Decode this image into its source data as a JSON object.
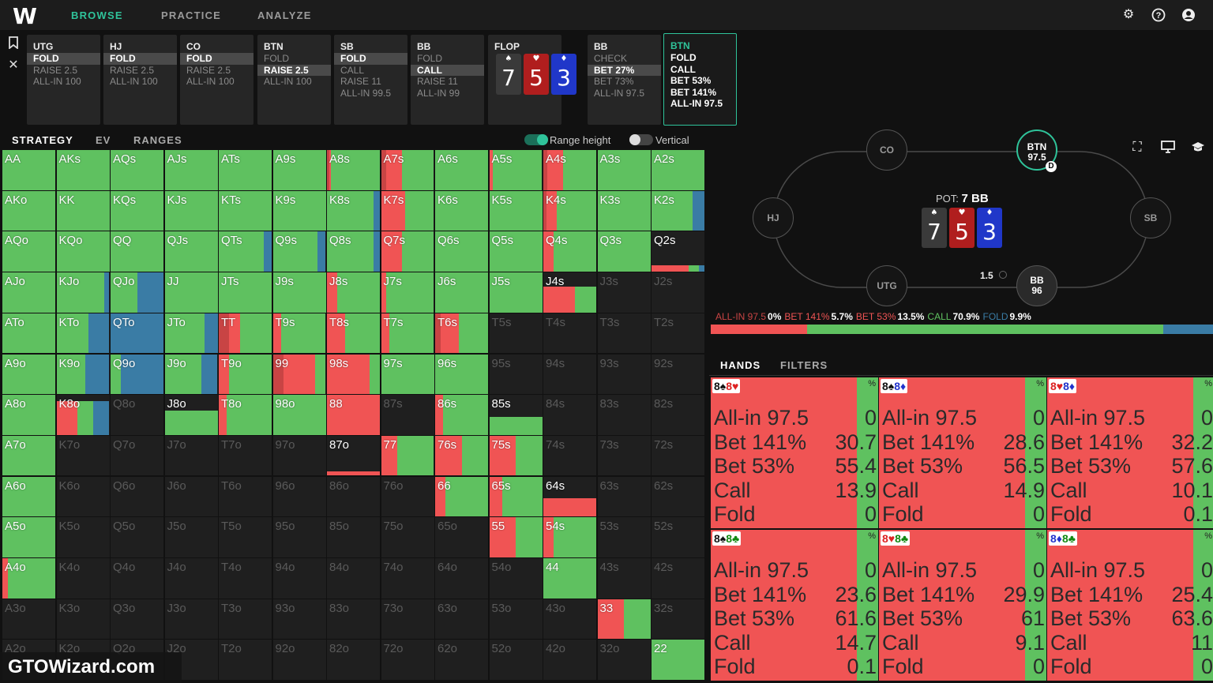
{
  "nav": {
    "logo": "W",
    "tabs": [
      "BROWSE",
      "PRACTICE",
      "ANALYZE"
    ],
    "active": "BROWSE",
    "icons": [
      "gear-icon",
      "help-icon",
      "user-icon"
    ]
  },
  "colors": {
    "green": "#5fc160",
    "red": "#f05454",
    "darkred": "#c84444",
    "blue": "#3a7ca5",
    "accent": "#2fc39a"
  },
  "actionStrip": {
    "positions": [
      {
        "name": "UTG",
        "actions": [
          "FOLD",
          "RAISE 2.5",
          "ALL-IN 100"
        ],
        "selected": 0
      },
      {
        "name": "HJ",
        "actions": [
          "FOLD",
          "RAISE 2.5",
          "ALL-IN 100"
        ],
        "selected": 0
      },
      {
        "name": "CO",
        "actions": [
          "FOLD",
          "RAISE 2.5",
          "ALL-IN 100"
        ],
        "selected": 0
      },
      {
        "name": "BTN",
        "actions": [
          "FOLD",
          "RAISE 2.5",
          "ALL-IN 100"
        ],
        "selected": 1
      },
      {
        "name": "SB",
        "actions": [
          "FOLD",
          "CALL",
          "RAISE 11",
          "ALL-IN 99.5"
        ],
        "selected": 0
      },
      {
        "name": "BB",
        "actions": [
          "FOLD",
          "CALL",
          "RAISE 11",
          "ALL-IN 99"
        ],
        "selected": 1
      }
    ],
    "flop": {
      "label": "FLOP",
      "cards": [
        {
          "rank": "7",
          "suit": "♠",
          "color": "#3a3a3a"
        },
        {
          "rank": "5",
          "suit": "♥",
          "color": "#b01e1e"
        },
        {
          "rank": "3",
          "suit": "♦",
          "color": "#2037c9"
        }
      ]
    },
    "postflop": [
      {
        "name": "BB",
        "actions": [
          "CHECK",
          "BET 27%",
          "BET 73%",
          "ALL-IN 97.5"
        ],
        "selected": 1
      },
      {
        "name": "BTN",
        "actions": [
          "FOLD",
          "CALL",
          "BET 53%",
          "BET 141%",
          "ALL-IN 97.5"
        ],
        "active": true
      }
    ]
  },
  "strategyTabs": [
    "STRATEGY",
    "EV",
    "RANGES"
  ],
  "toggles": [
    {
      "label": "Range height",
      "on": true
    },
    {
      "label": "Vertical",
      "on": false
    }
  ],
  "matrix": [
    [
      "AA",
      "AKs",
      "AQs",
      "AJs",
      "ATs",
      "A9s",
      "A8s",
      "A7s",
      "A6s",
      "A5s",
      "A4s",
      "A3s",
      "A2s"
    ],
    [
      "AKo",
      "KK",
      "KQs",
      "KJs",
      "KTs",
      "K9s",
      "K8s",
      "K7s",
      "K6s",
      "K5s",
      "K4s",
      "K3s",
      "K2s"
    ],
    [
      "AQo",
      "KQo",
      "QQ",
      "QJs",
      "QTs",
      "Q9s",
      "Q8s",
      "Q7s",
      "Q6s",
      "Q5s",
      "Q4s",
      "Q3s",
      "Q2s"
    ],
    [
      "AJo",
      "KJo",
      "QJo",
      "JJ",
      "JTs",
      "J9s",
      "J8s",
      "J7s",
      "J6s",
      "J5s",
      "J4s",
      "J3s",
      "J2s"
    ],
    [
      "ATo",
      "KTo",
      "QTo",
      "JTo",
      "TT",
      "T9s",
      "T8s",
      "T7s",
      "T6s",
      "T5s",
      "T4s",
      "T3s",
      "T2s"
    ],
    [
      "A9o",
      "K9o",
      "Q9o",
      "J9o",
      "T9o",
      "99",
      "98s",
      "97s",
      "96s",
      "95s",
      "94s",
      "93s",
      "92s"
    ],
    [
      "A8o",
      "K8o",
      "Q8o",
      "J8o",
      "T8o",
      "98o",
      "88",
      "87s",
      "86s",
      "85s",
      "84s",
      "83s",
      "82s"
    ],
    [
      "A7o",
      "K7o",
      "Q7o",
      "J7o",
      "T7o",
      "97o",
      "87o",
      "77",
      "76s",
      "75s",
      "74s",
      "73s",
      "72s"
    ],
    [
      "A6o",
      "K6o",
      "Q6o",
      "J6o",
      "T6o",
      "96o",
      "86o",
      "76o",
      "66",
      "65s",
      "64s",
      "63s",
      "62s"
    ],
    [
      "A5o",
      "K5o",
      "Q5o",
      "J5o",
      "T5o",
      "95o",
      "85o",
      "75o",
      "65o",
      "55",
      "54s",
      "53s",
      "52s"
    ],
    [
      "A4o",
      "K4o",
      "Q4o",
      "J4o",
      "T4o",
      "94o",
      "84o",
      "74o",
      "64o",
      "54o",
      "44",
      "43s",
      "42s"
    ],
    [
      "A3o",
      "K3o",
      "Q3o",
      "J3o",
      "T3o",
      "93o",
      "83o",
      "73o",
      "63o",
      "53o",
      "43o",
      "33",
      "32s"
    ],
    [
      "A2o",
      "K2o",
      "Q2o",
      "J2o",
      "T2o",
      "92o",
      "82o",
      "72o",
      "62o",
      "52o",
      "42o",
      "32o",
      "22"
    ]
  ],
  "table": {
    "pot_label": "POT:",
    "pot_value": "7 BB",
    "seats": [
      {
        "name": "CO"
      },
      {
        "name": "BTN",
        "stack": "97.5",
        "dealer": "D"
      },
      {
        "name": "HJ"
      },
      {
        "name": "SB"
      },
      {
        "name": "UTG"
      },
      {
        "name": "BB",
        "stack": "96",
        "bet": "1.5"
      }
    ],
    "icons": [
      "fullscreen-icon",
      "monitor-icon",
      "graduation-cap-icon"
    ]
  },
  "summary": [
    {
      "label": "ALL-IN 97.5",
      "pct": "0%",
      "color": "#c84444",
      "frac": 0.0
    },
    {
      "label": "BET 141%",
      "pct": "5.7%",
      "color": "#f05454",
      "frac": 0.057
    },
    {
      "label": "BET 53%",
      "pct": "13.5%",
      "color": "#f05454",
      "frac": 0.135
    },
    {
      "label": "CALL",
      "pct": "70.9%",
      "color": "#5fc160",
      "frac": 0.709
    },
    {
      "label": "FOLD",
      "pct": "9.9%",
      "color": "#3a7ca5",
      "frac": 0.099
    }
  ],
  "handsTabs": [
    "HANDS",
    "FILTERS"
  ],
  "hands": [
    {
      "c1": "8♠",
      "c2": "8♥",
      "s1": "",
      "s2": "r",
      "pct": "%",
      "vals": [
        [
          "All-in 97.5",
          "0"
        ],
        [
          "Bet 141%",
          "30.7"
        ],
        [
          "Bet 53%",
          "55.4"
        ],
        [
          "Call",
          "13.9"
        ],
        [
          "Fold",
          "0"
        ]
      ]
    },
    {
      "c1": "8♠",
      "c2": "8♦",
      "s1": "",
      "s2": "b",
      "pct": "%",
      "vals": [
        [
          "All-in 97.5",
          "0"
        ],
        [
          "Bet 141%",
          "28.6"
        ],
        [
          "Bet 53%",
          "56.5"
        ],
        [
          "Call",
          "14.9"
        ],
        [
          "Fold",
          "0"
        ]
      ]
    },
    {
      "c1": "8♥",
      "c2": "8♦",
      "s1": "r",
      "s2": "b",
      "pct": "%",
      "vals": [
        [
          "All-in 97.5",
          "0"
        ],
        [
          "Bet 141%",
          "32.2"
        ],
        [
          "Bet 53%",
          "57.6"
        ],
        [
          "Call",
          "10.1"
        ],
        [
          "Fold",
          "0.1"
        ]
      ]
    },
    {
      "c1": "8♠",
      "c2": "8♣",
      "s1": "",
      "s2": "g",
      "pct": "%",
      "vals": [
        [
          "All-in 97.5",
          "0"
        ],
        [
          "Bet 141%",
          "23.6"
        ],
        [
          "Bet 53%",
          "61.6"
        ],
        [
          "Call",
          "14.7"
        ],
        [
          "Fold",
          "0.1"
        ]
      ]
    },
    {
      "c1": "8♥",
      "c2": "8♣",
      "s1": "r",
      "s2": "g",
      "pct": "%",
      "vals": [
        [
          "All-in 97.5",
          "0"
        ],
        [
          "Bet 141%",
          "29.9"
        ],
        [
          "Bet 53%",
          "61"
        ],
        [
          "Call",
          "9.1"
        ],
        [
          "Fold",
          "0"
        ]
      ]
    },
    {
      "c1": "8♦",
      "c2": "8♣",
      "s1": "b",
      "s2": "g",
      "pct": "%",
      "vals": [
        [
          "All-in 97.5",
          "0"
        ],
        [
          "Bet 141%",
          "25.4"
        ],
        [
          "Bet 53%",
          "63.6"
        ],
        [
          "Call",
          "11"
        ],
        [
          "Fold",
          "0"
        ]
      ]
    }
  ],
  "watermark": "GTOWizard.com"
}
